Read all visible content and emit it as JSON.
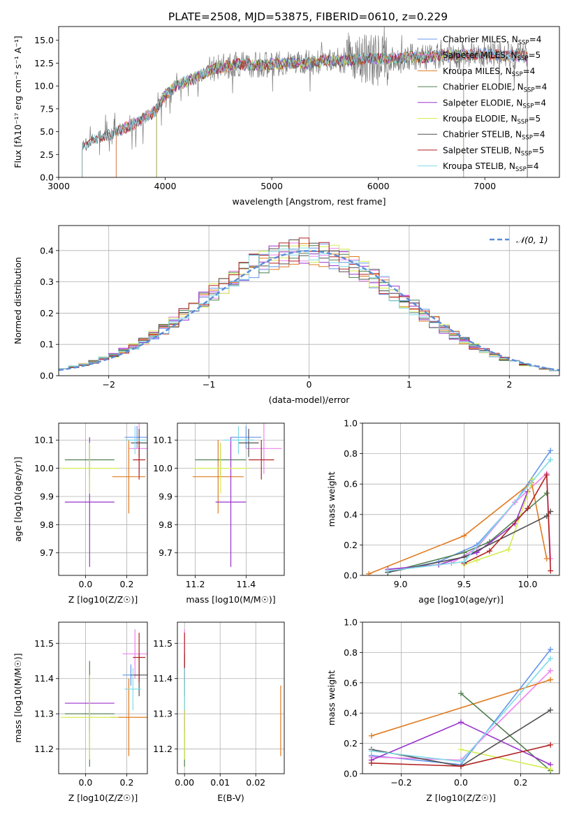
{
  "colors": {
    "Chabrier MILES": "#6495ed",
    "Salpeter MILES": "#ee82ee",
    "Kroupa MILES": "#e07b20",
    "Chabrier ELODIE": "#4f7f4f",
    "Salpeter ELODIE": "#9932cc",
    "Kroupa ELODIE": "#d4ec52",
    "Chabrier STELIB": "#505050",
    "Salpeter STELIB": "#b22222",
    "Kroupa STELIB": "#7fdce8"
  },
  "chart_data": [
    {
      "id": "spectrum",
      "type": "line",
      "title": "PLATE=2508, MJD=53875, FIBERID=0610, z=0.229",
      "xlabel": "wavelength [Angstrom, rest frame]",
      "ylabel": "Flux [fλ10⁻¹⁷ erg cm⁻² s⁻¹ A⁻¹]",
      "xlim": [
        3000,
        7700
      ],
      "ylim": [
        0,
        16.5
      ],
      "xticks": [
        3000,
        4000,
        5000,
        6000,
        7000
      ],
      "yticks": [
        0.0,
        2.5,
        5.0,
        7.5,
        10.0,
        12.5,
        15.0
      ],
      "grid": false,
      "legend_position": "right",
      "data_points": {
        "x": [
          3220,
          3300,
          3400,
          3500,
          3600,
          3700,
          3800,
          3900,
          4000,
          4100,
          4200,
          4300,
          4400,
          4500,
          4600,
          4700,
          4800,
          4900,
          5000,
          5100,
          5200,
          5300,
          5400,
          5500,
          5600,
          5700,
          5800,
          5900,
          6000,
          6100,
          6200,
          6300,
          6400,
          6500,
          6600,
          6700,
          6800,
          6900,
          7000,
          7100,
          7200,
          7300,
          7400
        ],
        "y": [
          3.2,
          4.0,
          4.5,
          4.8,
          5.3,
          5.8,
          6.5,
          7.2,
          9.0,
          10.0,
          10.5,
          11.0,
          11.6,
          12.0,
          12.2,
          12.4,
          12.3,
          12.3,
          12.4,
          12.4,
          12.5,
          12.5,
          12.6,
          12.8,
          12.7,
          12.8,
          12.9,
          13.0,
          13.0,
          13.0,
          13.0,
          13.2,
          13.1,
          13.2,
          13.3,
          13.3,
          13.4,
          13.5,
          13.5,
          13.4,
          13.3,
          13.3,
          13.2
        ]
      },
      "series": [
        {
          "name": "Chabrier MILES, N_SSP=4",
          "start": 3540,
          "end": 7400
        },
        {
          "name": "Salpeter MILES, N_SSP=5",
          "start": 3540,
          "end": 7400
        },
        {
          "name": "Kroupa MILES, N_SSP=4",
          "start": 3540,
          "end": 7400
        },
        {
          "name": "Chabrier ELODIE, N_SSP=4",
          "start": 3920,
          "end": 6800
        },
        {
          "name": "Salpeter ELODIE, N_SSP=4",
          "start": 3920,
          "end": 6800
        },
        {
          "name": "Kroupa ELODIE, N_SSP=5",
          "start": 3920,
          "end": 6800
        },
        {
          "name": "Chabrier STELIB, N_SSP=4",
          "start": 3220,
          "end": 7400
        },
        {
          "name": "Salpeter STELIB, N_SSP=5",
          "start": 3220,
          "end": 7400
        },
        {
          "name": "Kroupa STELIB, N_SSP=4",
          "start": 3220,
          "end": 7400
        }
      ],
      "legend_labels": [
        "Chabrier MILES, N",
        "Salpeter MILES, N",
        "Kroupa MILES, N",
        "Chabrier ELODIE, N",
        "Salpeter ELODIE, N",
        "Kroupa ELODIE, N",
        "Chabrier STELIB, N",
        "Salpeter STELIB, N",
        "Kroupa STELIB, N"
      ],
      "legend_counts": [
        "=4",
        "=5",
        "=4",
        "=4",
        "=4",
        "=5",
        "=4",
        "=5",
        "=4"
      ],
      "legend_sub": "SSP"
    },
    {
      "id": "residuals",
      "type": "line",
      "xlabel": "(data-model)/error",
      "ylabel": "Normed distribution",
      "xlim": [
        -2.5,
        2.5
      ],
      "ylim": [
        0,
        0.48
      ],
      "xticks": [
        -2,
        -1,
        0,
        1,
        2
      ],
      "yticks": [
        0.0,
        0.1,
        0.2,
        0.3,
        0.4
      ],
      "grid": true,
      "legend": "𝒩(0, 1)",
      "gaussian": {
        "mean": 0,
        "sigma": 1,
        "color": "#5b8bd6",
        "dashed": true
      },
      "bins": {
        "start": -2.5,
        "width": 0.1,
        "count": 50
      }
    },
    {
      "id": "age_Z",
      "type": "scatter",
      "xlabel": "Z [log10(Z/Z☉)]",
      "ylabel": "age  [log10(age/yr)]",
      "xlim": [
        -0.13,
        0.3
      ],
      "ylim": [
        9.62,
        10.16
      ],
      "xticks": [
        0.0,
        0.2
      ],
      "yticks": [
        9.7,
        9.8,
        9.9,
        10.0,
        10.1
      ],
      "grid": true,
      "points": [
        {
          "label": "Chabrier MILES",
          "x": 0.25,
          "xerr": 0.06,
          "y": 10.11,
          "yerr": 0.04
        },
        {
          "label": "Salpeter MILES",
          "x": 0.26,
          "xerr": 0.05,
          "y": 10.07,
          "yerr": 0.09
        },
        {
          "label": "Kroupa MILES",
          "x": 0.21,
          "xerr": 0.08,
          "y": 9.97,
          "yerr": 0.13
        },
        {
          "label": "Chabrier ELODIE",
          "x": 0.02,
          "xerr": 0.12,
          "y": 10.03,
          "yerr": 0.06
        },
        {
          "label": "Salpeter ELODIE",
          "x": 0.02,
          "xerr": 0.12,
          "y": 9.88,
          "yerr": 0.23
        },
        {
          "label": "Kroupa ELODIE",
          "x": 0.02,
          "xerr": 0.14,
          "y": 10.0,
          "yerr": 0.09
        },
        {
          "label": "Chabrier STELIB",
          "x": 0.26,
          "xerr": 0.04,
          "y": 10.09,
          "yerr": 0.05
        },
        {
          "label": "Salpeter STELIB",
          "x": 0.26,
          "xerr": 0.03,
          "y": 10.03,
          "yerr": 0.07
        },
        {
          "label": "Kroupa STELIB",
          "x": 0.24,
          "xerr": 0.05,
          "y": 10.1,
          "yerr": 0.05
        }
      ]
    },
    {
      "id": "age_mass",
      "type": "scatter",
      "xlabel": "mass [log10(M/M☉)]",
      "xlim": [
        11.13,
        11.55
      ],
      "ylim": [
        9.62,
        10.16
      ],
      "xticks": [
        11.2,
        11.4
      ],
      "yticks": [
        9.7,
        9.8,
        9.9,
        10.0,
        10.1
      ],
      "grid": true,
      "points": [
        {
          "label": "Chabrier MILES",
          "x": 11.4,
          "xerr": 0.06,
          "y": 10.11,
          "yerr": 0.04
        },
        {
          "label": "Salpeter MILES",
          "x": 11.47,
          "xerr": 0.07,
          "y": 10.07,
          "yerr": 0.09
        },
        {
          "label": "Kroupa MILES",
          "x": 11.29,
          "xerr": 0.1,
          "y": 9.97,
          "yerr": 0.13
        },
        {
          "label": "Chabrier ELODIE",
          "x": 11.3,
          "xerr": 0.1,
          "y": 10.03,
          "yerr": 0.06
        },
        {
          "label": "Salpeter ELODIE",
          "x": 11.34,
          "xerr": 0.06,
          "y": 9.88,
          "yerr": 0.23
        },
        {
          "label": "Kroupa ELODIE",
          "x": 11.3,
          "xerr": 0.11,
          "y": 10.0,
          "yerr": 0.09
        },
        {
          "label": "Chabrier STELIB",
          "x": 11.41,
          "xerr": 0.04,
          "y": 10.09,
          "yerr": 0.05
        },
        {
          "label": "Salpeter STELIB",
          "x": 11.46,
          "xerr": 0.05,
          "y": 10.03,
          "yerr": 0.07
        },
        {
          "label": "Kroupa STELIB",
          "x": 11.37,
          "xerr": 0.06,
          "y": 10.1,
          "yerr": 0.05
        }
      ]
    },
    {
      "id": "weight_age",
      "type": "line",
      "xlabel": "age  [log10(age/yr)]",
      "ylabel": "mass weight",
      "xlim": [
        8.7,
        10.25
      ],
      "ylim": [
        0,
        1.0
      ],
      "xticks": [
        9.0,
        9.5,
        10.0
      ],
      "yticks": [
        0.0,
        0.2,
        0.4,
        0.6,
        0.8,
        1.0
      ],
      "grid": true,
      "lines": [
        {
          "label": "Chabrier MILES",
          "x": [
            8.9,
            9.3,
            9.6,
            9.9,
            10.18
          ],
          "y": [
            0.02,
            0.09,
            0.2,
            0.48,
            0.82
          ]
        },
        {
          "label": "Salpeter MILES",
          "x": [
            8.9,
            9.4,
            9.6,
            9.9,
            10.15,
            10.18
          ],
          "y": [
            0.03,
            0.08,
            0.18,
            0.48,
            0.67,
            0.11
          ]
        },
        {
          "label": "Kroupa MILES",
          "x": [
            8.75,
            9.5,
            10.03,
            10.15
          ],
          "y": [
            0.01,
            0.26,
            0.61,
            0.11
          ]
        },
        {
          "label": "Chabrier ELODIE",
          "x": [
            8.9,
            9.5,
            9.7,
            10.15
          ],
          "y": [
            0.02,
            0.15,
            0.22,
            0.54
          ]
        },
        {
          "label": "Salpeter ELODIE",
          "x": [
            8.9,
            9.3,
            9.6,
            9.9,
            10.0
          ],
          "y": [
            0.04,
            0.07,
            0.15,
            0.34,
            0.55
          ]
        },
        {
          "label": "Kroupa ELODIE",
          "x": [
            9.5,
            9.6,
            9.85,
            10.04
          ],
          "y": [
            0.07,
            0.1,
            0.17,
            0.63
          ]
        },
        {
          "label": "Chabrier STELIB",
          "x": [
            8.9,
            9.5,
            10.15,
            10.18
          ],
          "y": [
            0.02,
            0.12,
            0.39,
            0.42
          ]
        },
        {
          "label": "Salpeter STELIB",
          "x": [
            9.5,
            9.7,
            10.0,
            10.15,
            10.18
          ],
          "y": [
            0.08,
            0.16,
            0.44,
            0.66,
            0.03
          ]
        },
        {
          "label": "Kroupa STELIB",
          "x": [
            8.9,
            9.5,
            10.18
          ],
          "y": [
            0.03,
            0.09,
            0.76
          ]
        }
      ]
    },
    {
      "id": "mass_Z",
      "type": "scatter",
      "xlabel": "Z [log10(Z/Z☉)]",
      "ylabel": "mass [log10(M/M☉)]",
      "xlim": [
        -0.13,
        0.3
      ],
      "ylim": [
        11.13,
        11.56
      ],
      "xticks": [
        0.0,
        0.2
      ],
      "yticks": [
        11.2,
        11.3,
        11.4,
        11.5
      ],
      "grid": true,
      "points": [
        {
          "label": "Chabrier MILES",
          "x": 0.22,
          "xerr": 0.04,
          "y": 11.41,
          "yerr": 0.03
        },
        {
          "label": "Salpeter MILES",
          "x": 0.24,
          "xerr": 0.06,
          "y": 11.47,
          "yerr": 0.07
        },
        {
          "label": "Kroupa MILES",
          "x": 0.21,
          "xerr": 0.09,
          "y": 11.29,
          "yerr": 0.11
        },
        {
          "label": "Chabrier ELODIE",
          "x": 0.02,
          "xerr": 0.12,
          "y": 11.3,
          "yerr": 0.15
        },
        {
          "label": "Salpeter ELODIE",
          "x": 0.02,
          "xerr": 0.12,
          "y": 11.33,
          "yerr": 0.08
        },
        {
          "label": "Kroupa ELODIE",
          "x": 0.02,
          "xerr": 0.14,
          "y": 11.29,
          "yerr": 0.12
        },
        {
          "label": "Chabrier STELIB",
          "x": 0.26,
          "xerr": 0.04,
          "y": 11.41,
          "yerr": 0.06
        },
        {
          "label": "Salpeter STELIB",
          "x": 0.26,
          "xerr": 0.03,
          "y": 11.46,
          "yerr": 0.07
        },
        {
          "label": "Kroupa STELIB",
          "x": 0.23,
          "xerr": 0.04,
          "y": 11.37,
          "yerr": 0.06
        }
      ]
    },
    {
      "id": "mass_ebv",
      "type": "scatter",
      "xlabel": "E(B-V)",
      "xlim": [
        -0.002,
        0.028
      ],
      "ylim": [
        11.13,
        11.56
      ],
      "xticks": [
        0.0,
        0.01,
        0.02
      ],
      "yticks": [
        11.2,
        11.3,
        11.4,
        11.5
      ],
      "grid": true,
      "points": [
        {
          "label": "Chabrier MILES",
          "x": 0.0,
          "xerr": 0,
          "y": 11.41,
          "yerr": 0.03
        },
        {
          "label": "Salpeter MILES",
          "x": 0.0,
          "xerr": 0,
          "y": 11.47,
          "yerr": 0.07
        },
        {
          "label": "Kroupa MILES",
          "x": 0.027,
          "xerr": 0,
          "y": 11.28,
          "yerr": 0.1
        },
        {
          "label": "Chabrier ELODIE",
          "x": 0.0,
          "xerr": 0,
          "y": 11.3,
          "yerr": 0.15
        },
        {
          "label": "Salpeter ELODIE",
          "x": 0.0,
          "xerr": 0,
          "y": 11.33,
          "yerr": 0.08
        },
        {
          "label": "Kroupa ELODIE",
          "x": 0.0,
          "xerr": 0,
          "y": 11.29,
          "yerr": 0.12
        },
        {
          "label": "Chabrier STELIB",
          "x": 0.0,
          "xerr": 0,
          "y": 11.41,
          "yerr": 0.06
        },
        {
          "label": "Salpeter STELIB",
          "x": 0.0,
          "xerr": 0,
          "y": 11.46,
          "yerr": 0.07
        },
        {
          "label": "Kroupa STELIB",
          "x": 0.0,
          "xerr": 0,
          "y": 11.37,
          "yerr": 0.06
        }
      ]
    },
    {
      "id": "weight_Z",
      "type": "line",
      "xlabel": "Z [log10(Z/Z☉)]",
      "ylabel": "mass weight",
      "xlim": [
        -0.33,
        0.33
      ],
      "ylim": [
        0,
        1.0
      ],
      "xticks": [
        -0.2,
        0.0,
        0.2
      ],
      "yticks": [
        0.0,
        0.2,
        0.4,
        0.6,
        0.8,
        1.0
      ],
      "grid": true,
      "lines": [
        {
          "label": "Chabrier MILES",
          "x": [
            -0.3,
            0.0,
            0.3
          ],
          "y": [
            0.12,
            0.06,
            0.82
          ]
        },
        {
          "label": "Salpeter MILES",
          "x": [
            -0.3,
            0.0,
            0.3
          ],
          "y": [
            0.11,
            0.09,
            0.68
          ]
        },
        {
          "label": "Kroupa MILES",
          "x": [
            -0.3,
            0.3
          ],
          "y": [
            0.25,
            0.62
          ]
        },
        {
          "label": "Chabrier ELODIE",
          "x": [
            0.0,
            0.3
          ],
          "y": [
            0.53,
            0.02
          ]
        },
        {
          "label": "Salpeter ELODIE",
          "x": [
            -0.3,
            0.0,
            0.3
          ],
          "y": [
            0.09,
            0.34,
            0.06
          ]
        },
        {
          "label": "Kroupa ELODIE",
          "x": [
            0.0,
            0.3
          ],
          "y": [
            0.16,
            0.03
          ]
        },
        {
          "label": "Chabrier STELIB",
          "x": [
            -0.3,
            0.0,
            0.3
          ],
          "y": [
            0.16,
            0.05,
            0.42
          ]
        },
        {
          "label": "Salpeter STELIB",
          "x": [
            -0.3,
            0.0,
            0.3
          ],
          "y": [
            0.07,
            0.05,
            0.19
          ]
        },
        {
          "label": "Kroupa STELIB",
          "x": [
            -0.3,
            0.0,
            0.3
          ],
          "y": [
            0.15,
            0.08,
            0.76
          ]
        }
      ]
    }
  ]
}
